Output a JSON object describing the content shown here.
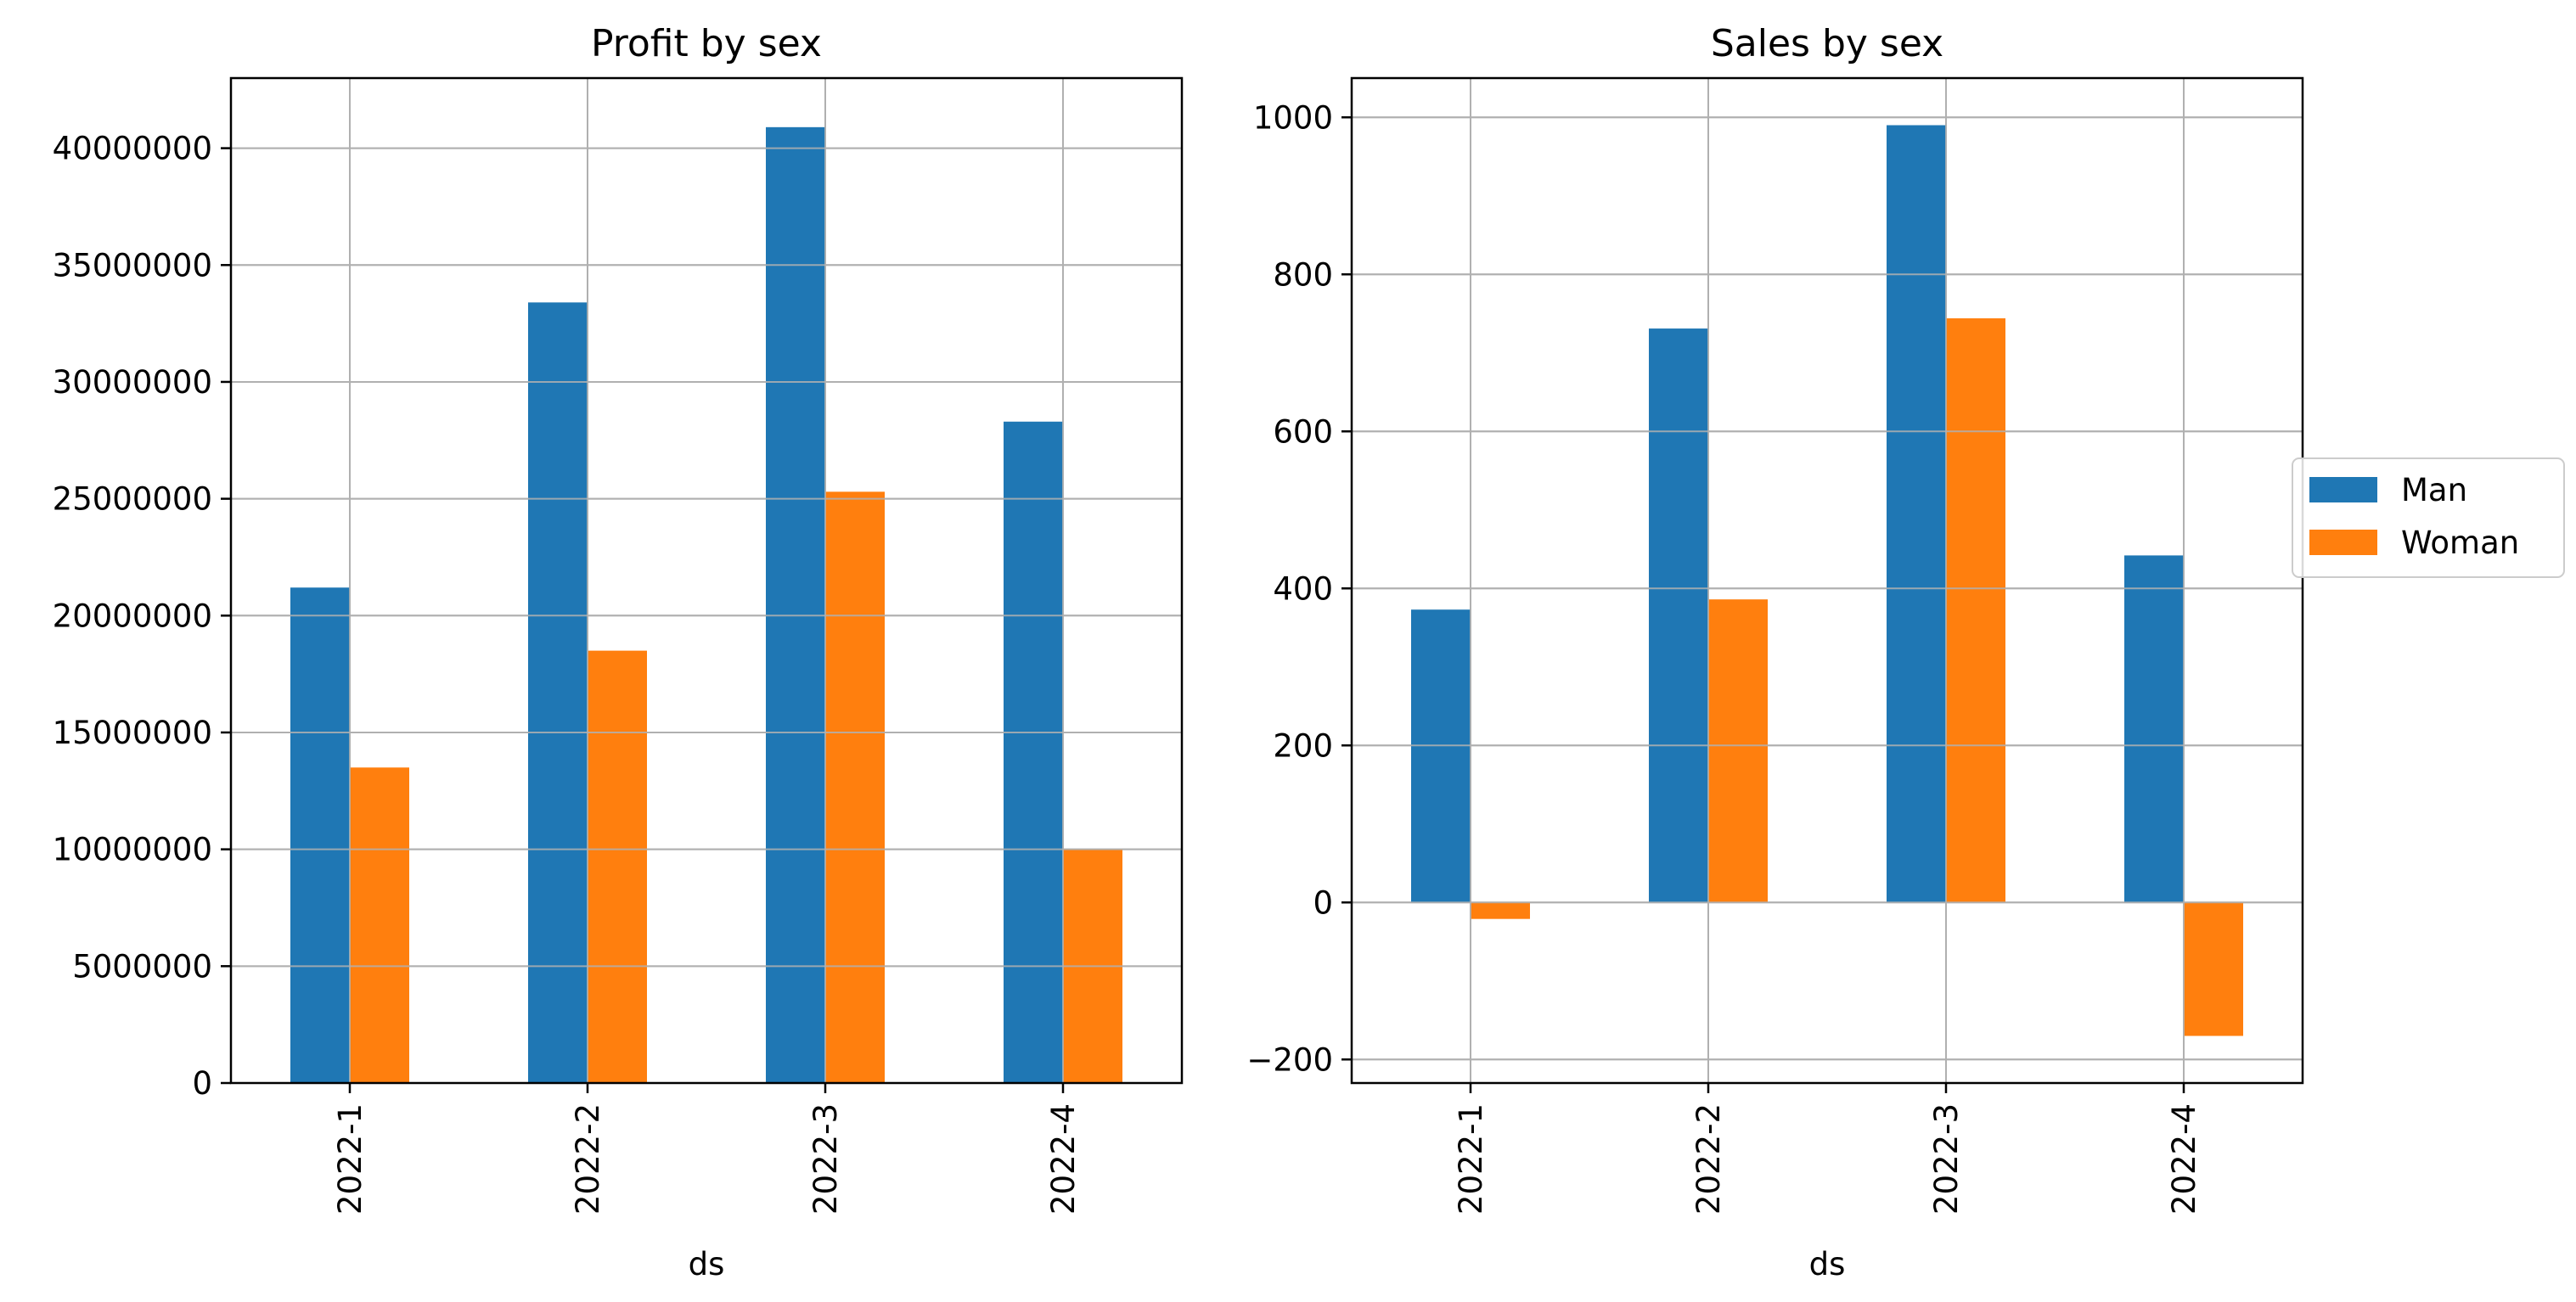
{
  "colors": {
    "man": "#1f77b4",
    "woman": "#ff7f0e",
    "grid": "#b0b0b0",
    "axis": "#000000"
  },
  "legend": {
    "placement": "right-center",
    "entries": [
      "Man",
      "Woman"
    ]
  },
  "chart_data": [
    {
      "type": "bar",
      "title": "Profit by sex",
      "xlabel": "ds",
      "ylabel": "",
      "categories": [
        "2022-1",
        "2022-2",
        "2022-3",
        "2022-4"
      ],
      "series": [
        {
          "name": "Man",
          "values": [
            21200000,
            33400000,
            40900000,
            28300000
          ]
        },
        {
          "name": "Woman",
          "values": [
            13500000,
            18500000,
            25300000,
            10000000
          ]
        }
      ],
      "ylim": [
        0,
        43000000
      ],
      "yticks": [
        0,
        5000000,
        10000000,
        15000000,
        20000000,
        25000000,
        30000000,
        35000000,
        40000000
      ],
      "ytick_labels": [
        "0",
        "5000000",
        "10000000",
        "15000000",
        "20000000",
        "25000000",
        "30000000",
        "35000000",
        "40000000"
      ],
      "grid": true
    },
    {
      "type": "bar",
      "title": "Sales by sex",
      "xlabel": "ds",
      "ylabel": "",
      "categories": [
        "2022-1",
        "2022-2",
        "2022-3",
        "2022-4"
      ],
      "series": [
        {
          "name": "Man",
          "values": [
            373,
            731,
            990,
            442
          ]
        },
        {
          "name": "Woman",
          "values": [
            -21,
            386,
            744,
            -170
          ]
        }
      ],
      "ylim": [
        -230,
        1050
      ],
      "yticks": [
        -200,
        0,
        200,
        400,
        600,
        800,
        1000
      ],
      "ytick_labels": [
        "−200",
        "0",
        "200",
        "400",
        "600",
        "800",
        "1000"
      ],
      "grid": true
    }
  ]
}
